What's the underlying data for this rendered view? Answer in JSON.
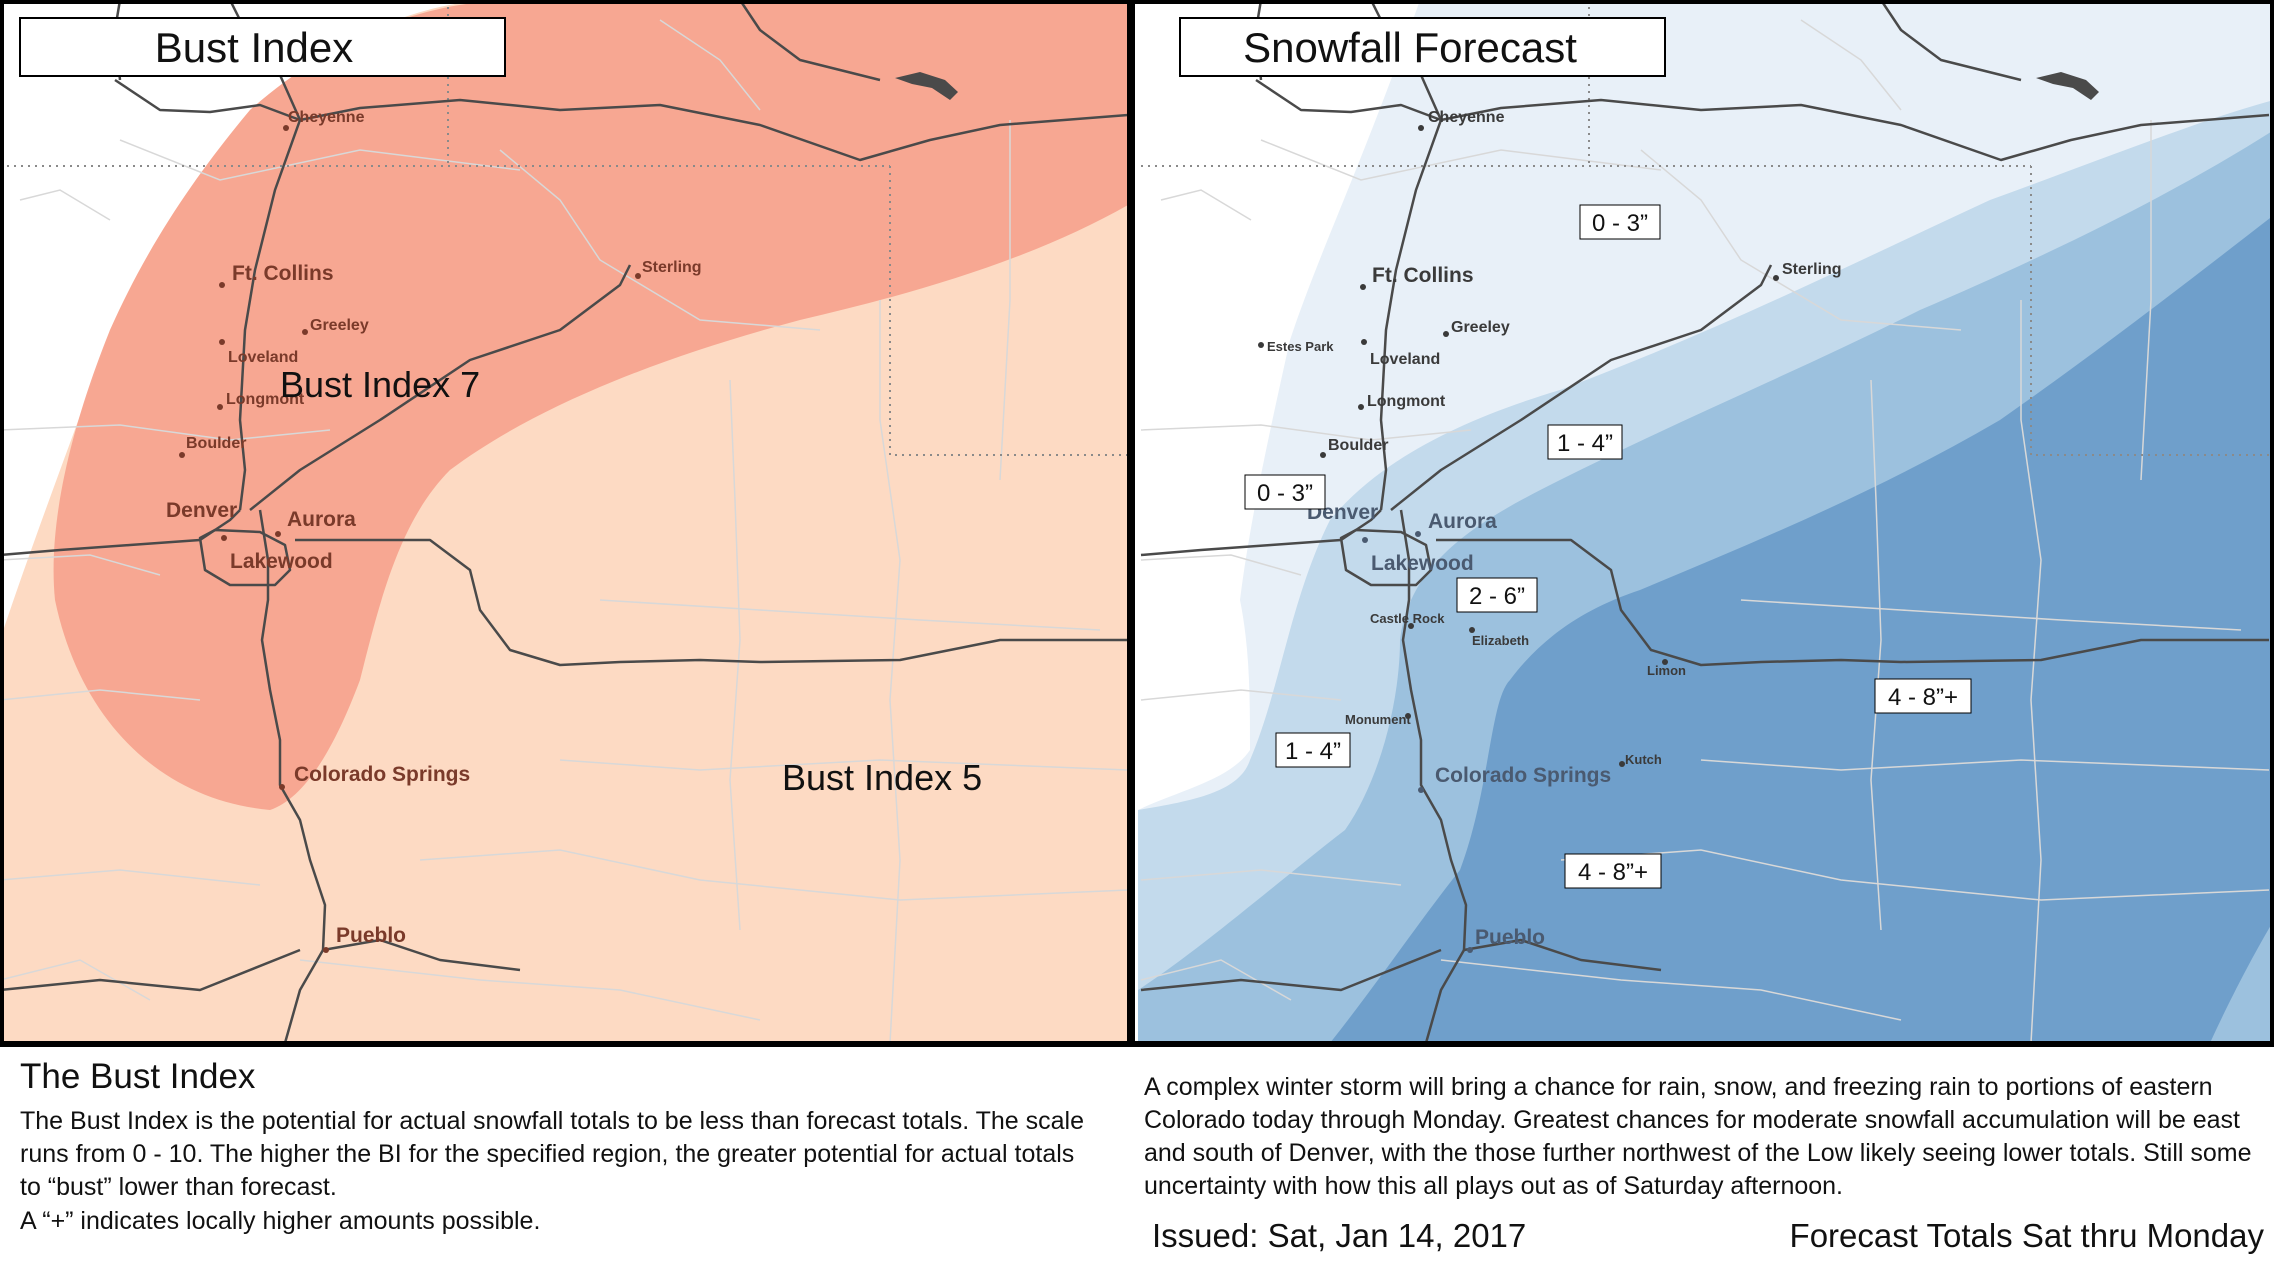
{
  "panels": {
    "left": {
      "title": "Bust Index"
    },
    "right": {
      "title": "Snowfall Forecast"
    }
  },
  "colors": {
    "bust_low": "#fddac3",
    "bust_high": "#f7a48f",
    "snow_0_3": "#e8f0f8",
    "snow_1_4": "#c3daec",
    "snow_2_6": "#9cc1de",
    "snow_4_8": "#6f9fcb"
  },
  "cities": {
    "cheyenne": "Cheyenne",
    "ft_collins": "Ft. Collins",
    "greeley": "Greeley",
    "sterling": "Sterling",
    "loveland": "Loveland",
    "longmont": "Longmont",
    "boulder": "Boulder",
    "denver": "Denver",
    "aurora": "Aurora",
    "lakewood": "Lakewood",
    "colorado_springs": "Colorado Springs",
    "pueblo": "Pueblo",
    "estes_park": "Estes Park",
    "castle_rock": "Castle Rock",
    "elizabeth": "Elizabeth",
    "limon": "Limon",
    "monument": "Monument",
    "kutch": "Kutch"
  },
  "bust_map": {
    "labels": [
      "Bust Index 7",
      "Bust Index 5"
    ]
  },
  "snow_map": {
    "labels": [
      "0 - 3”",
      "0 - 3”",
      "1 - 4”",
      "2 - 6”",
      "1 - 4”",
      "4 - 8”+",
      "4 - 8”+"
    ]
  },
  "bust_index_text": {
    "heading": "The Bust Index",
    "body": "The Bust Index is the potential for actual snowfall totals to be less than forecast totals. The scale runs from 0 - 10. The higher the BI for the specified region, the greater potential for actual totals to “bust” lower than forecast.",
    "note": "A “+” indicates locally higher amounts possible."
  },
  "storm_text": {
    "body": "A complex winter storm will bring a chance for rain, snow, and freezing rain to portions of eastern Colorado today through Monday. Greatest chances for moderate snowfall accumulation will be east and south of Denver, with the those further northwest of the Low likely seeing lower totals. Still some uncertainty with how this all plays out as of Saturday afternoon.",
    "issued": "Issued: Sat, Jan 14, 2017",
    "totals": "Forecast Totals Sat thru Monday"
  }
}
